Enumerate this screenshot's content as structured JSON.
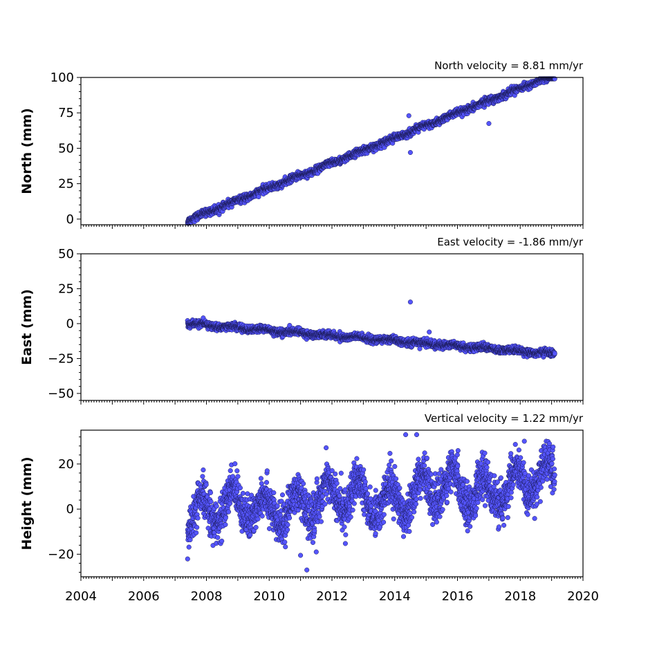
{
  "chart_data": [
    {
      "type": "scatter",
      "title": "North velocity = 8.81 mm/yr",
      "ylabel": "North (mm)",
      "xlim": [
        2004,
        2020
      ],
      "ylim": [
        -4,
        100
      ],
      "yticks": [
        0,
        25,
        50,
        75,
        100
      ],
      "x_range": [
        2007.4,
        2019.1
      ],
      "series": [
        {
          "trend": {
            "slope": 8.81,
            "x0": 2007.4,
            "y0": -1
          },
          "scatter_sd": 1.2,
          "seasonal_amp": 0.6,
          "n_points": 2700,
          "outliers": [
            [
              2014.45,
              73
            ],
            [
              2014.5,
              47
            ],
            [
              2017.0,
              67.5
            ]
          ]
        }
      ],
      "color": "#5555ff"
    },
    {
      "type": "scatter",
      "title": "East velocity = -1.86 mm/yr",
      "ylabel": "East (mm)",
      "xlim": [
        2004,
        2020
      ],
      "ylim": [
        -55,
        50
      ],
      "yticks": [
        -50,
        -25,
        0,
        25,
        50
      ],
      "x_range": [
        2007.4,
        2019.1
      ],
      "series": [
        {
          "trend": {
            "slope": -1.86,
            "x0": 2007.4,
            "y0": 0
          },
          "scatter_sd": 1.2,
          "seasonal_amp": 0.8,
          "n_points": 2700,
          "outliers": [
            [
              2014.5,
              15.5
            ],
            [
              2015.1,
              -6
            ],
            [
              2014.8,
              -18
            ]
          ]
        }
      ],
      "color": "#5555ff"
    },
    {
      "type": "scatter",
      "title": "Vertical velocity = 1.22 mm/yr",
      "ylabel": "Height (mm)",
      "xlim": [
        2004,
        2020
      ],
      "ylim": [
        -30,
        35
      ],
      "yticks": [
        -20,
        0,
        20
      ],
      "x_range": [
        2007.4,
        2019.1
      ],
      "series": [
        {
          "trend": {
            "slope": 1.22,
            "x0": 2007.4,
            "y0": -2
          },
          "scatter_sd": 4.5,
          "seasonal_amp": 7,
          "n_points": 2700,
          "outliers": [
            [
              2011.2,
              -27
            ],
            [
              2014.35,
              33
            ],
            [
              2014.7,
              33
            ],
            [
              2011.0,
              -20.5
            ],
            [
              2011.5,
              -19
            ]
          ]
        }
      ],
      "color": "#5555ff"
    }
  ],
  "xticks": [
    2004,
    2006,
    2008,
    2010,
    2012,
    2014,
    2016,
    2018,
    2020
  ]
}
